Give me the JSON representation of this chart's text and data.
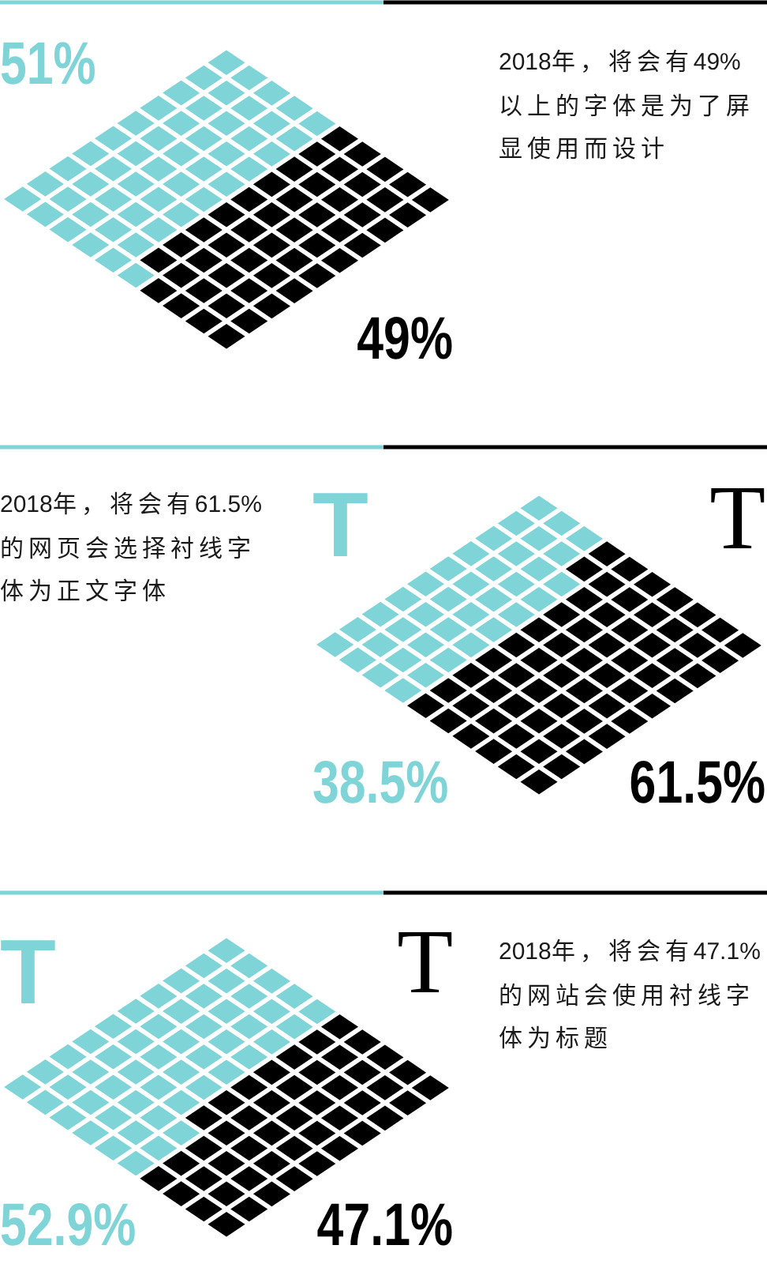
{
  "chart_data": [
    {
      "type": "other",
      "title": "2018年，将会有49%以上的字体是为了屏显使用而设计",
      "values": [
        51,
        49
      ],
      "colors": [
        "#7fd4d8",
        "#000000"
      ],
      "value_labels": [
        "51%",
        "49%"
      ]
    },
    {
      "type": "other",
      "title": "2018年，将会有61.5%的网页会选择衬线字体为正文字体",
      "categories": [
        "T",
        "T"
      ],
      "values": [
        38.5,
        61.5
      ],
      "colors": [
        "#7fd4d8",
        "#000000"
      ],
      "value_labels": [
        "38.5%",
        "61.5%"
      ]
    },
    {
      "type": "other",
      "title": "2018年，将会有47.1%的网站会使用衬线字体为标题",
      "categories": [
        "T",
        "T"
      ],
      "values": [
        52.9,
        47.1
      ],
      "colors": [
        "#7fd4d8",
        "#000000"
      ],
      "value_labels": [
        "52.9%",
        "47.1%"
      ]
    }
  ]
}
